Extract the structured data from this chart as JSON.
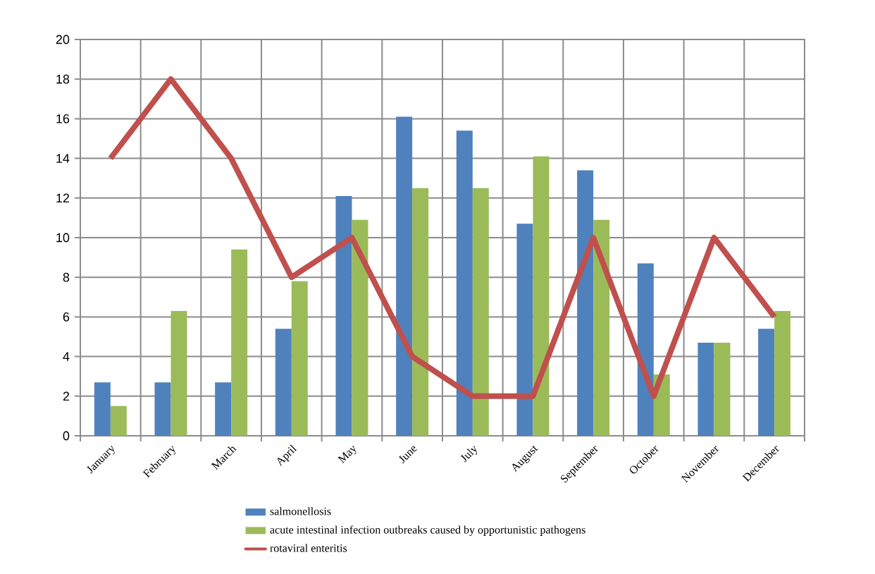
{
  "chart_data": {
    "type": "bar",
    "categories": [
      "January",
      "February",
      "March",
      "April",
      "May",
      "June",
      "July",
      "August",
      "September",
      "October",
      "November",
      "December"
    ],
    "series": [
      {
        "name": "salmonellosis",
        "color": "#4f81bd",
        "values": [
          2.7,
          2.7,
          2.7,
          5.4,
          12.1,
          16.1,
          15.4,
          10.7,
          13.4,
          8.7,
          4.7,
          5.4
        ]
      },
      {
        "name": "acute intestinal infection outbreaks caused by opportunistic pathogens",
        "color": "#9bbb59",
        "values": [
          1.5,
          6.3,
          9.4,
          7.8,
          10.9,
          12.5,
          12.5,
          14.1,
          10.9,
          3.1,
          4.7,
          6.3
        ]
      },
      {
        "name": "rotaviral enteritis",
        "type": "line",
        "color": "#c0504d",
        "values": [
          14,
          18,
          14,
          8,
          10,
          4,
          2,
          2,
          10,
          2,
          10,
          6
        ]
      }
    ],
    "ylim": [
      0,
      20
    ],
    "yticks": [
      0,
      2,
      4,
      6,
      8,
      10,
      12,
      14,
      16,
      18,
      20
    ],
    "grid": true,
    "legend": "bottom"
  }
}
